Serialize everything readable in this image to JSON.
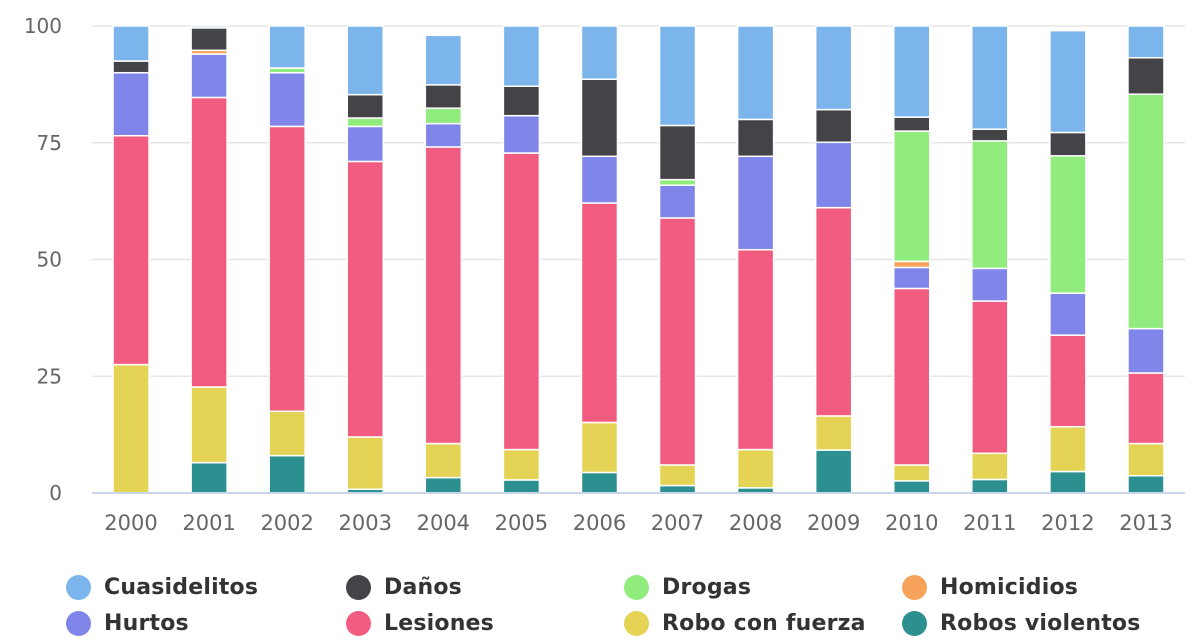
{
  "chart_data": {
    "type": "bar",
    "stacked": true,
    "title": "",
    "xlabel": "",
    "ylabel": "",
    "ylim": [
      0,
      100
    ],
    "yticks": [
      0,
      25,
      50,
      75,
      100
    ],
    "categories": [
      "2000",
      "2001",
      "2002",
      "2003",
      "2004",
      "2005",
      "2006",
      "2007",
      "2008",
      "2009",
      "2010",
      "2011",
      "2012",
      "2013"
    ],
    "series": [
      {
        "name": "Robos violentos",
        "color": "#2b908f",
        "values": [
          0.0,
          6.5,
          8.0,
          0.8,
          3.3,
          2.8,
          4.4,
          1.6,
          1.1,
          9.2,
          2.6,
          2.9,
          4.6,
          3.7
        ]
      },
      {
        "name": "Robo con fuerza",
        "color": "#e4d354",
        "values": [
          27.5,
          16.2,
          9.5,
          11.2,
          7.3,
          6.5,
          10.7,
          4.4,
          8.2,
          7.3,
          3.4,
          5.6,
          9.6,
          6.9
        ]
      },
      {
        "name": "Lesiones",
        "color": "#f15c80",
        "values": [
          49.0,
          62.0,
          61.0,
          59.0,
          63.5,
          63.5,
          47.0,
          52.9,
          42.8,
          44.6,
          37.8,
          32.6,
          19.6,
          15.1
        ]
      },
      {
        "name": "Hurtos",
        "color": "#8085e9",
        "values": [
          13.5,
          9.3,
          11.5,
          7.5,
          5.0,
          8.0,
          10.0,
          7.0,
          20.0,
          14.0,
          4.5,
          7.0,
          9.0,
          9.5
        ]
      },
      {
        "name": "Homicidios",
        "color": "#f7a35c",
        "values": [
          0.0,
          0.8,
          0.0,
          0.0,
          0.0,
          0.0,
          0.0,
          0.0,
          0.0,
          0.0,
          1.3,
          0.0,
          0.0,
          0.0
        ]
      },
      {
        "name": "Drogas",
        "color": "#90ed7d",
        "values": [
          0.0,
          0.0,
          1.0,
          1.8,
          3.3,
          0.0,
          0.0,
          1.2,
          0.0,
          0.0,
          27.9,
          27.3,
          29.4,
          50.2
        ]
      },
      {
        "name": "Daños",
        "color": "#434348",
        "values": [
          2.5,
          4.8,
          0.0,
          5.0,
          5.0,
          6.3,
          16.5,
          11.6,
          7.9,
          7.0,
          3.0,
          2.5,
          5.0,
          7.8
        ]
      },
      {
        "name": "Cuasidelitos",
        "color": "#7cb5ec",
        "values": [
          7.5,
          0.4,
          9.0,
          14.7,
          10.6,
          12.9,
          11.4,
          21.3,
          20.0,
          17.9,
          19.5,
          22.1,
          21.8,
          6.8
        ]
      }
    ],
    "legend": {
      "position": "bottom",
      "rows": [
        [
          "Cuasidelitos",
          "Daños",
          "Drogas",
          "Homicidios"
        ],
        [
          "Hurtos",
          "Lesiones",
          "Robo con fuerza",
          "Robos violentos"
        ]
      ]
    },
    "grid": true
  }
}
